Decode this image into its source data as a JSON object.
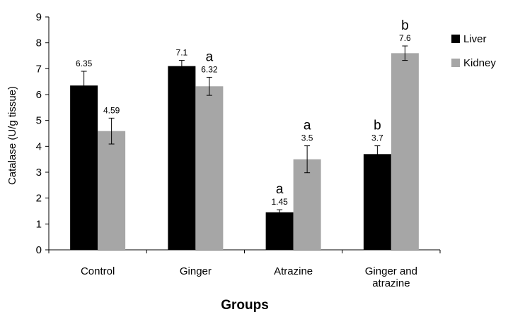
{
  "chart_data": {
    "type": "bar",
    "categories": [
      [
        "Control"
      ],
      [
        "Ginger"
      ],
      [
        "Atrazine"
      ],
      [
        "Ginger  and",
        "atrazine"
      ]
    ],
    "series": [
      {
        "name": "Liver",
        "color": "#000000",
        "values": [
          6.35,
          7.1,
          1.45,
          3.7
        ],
        "errors": [
          0.55,
          0.22,
          0.1,
          0.32
        ],
        "labels": [
          "6.35",
          "7.1",
          "1.45",
          "3.7"
        ],
        "significance": [
          "",
          "",
          "a",
          "b"
        ]
      },
      {
        "name": "Kidney",
        "color": "#a6a6a6",
        "values": [
          4.59,
          6.32,
          3.5,
          7.6
        ],
        "errors": [
          0.5,
          0.35,
          0.52,
          0.28
        ],
        "labels": [
          "4.59",
          "6.32",
          "3.5",
          "7.6"
        ],
        "significance": [
          "",
          "a",
          "a",
          "b"
        ]
      }
    ],
    "xlabel": "Groups",
    "ylabel": "Catalase (U/g tissue)",
    "ylim": [
      0,
      9
    ],
    "yticks": [
      "0",
      "1",
      "2",
      "3",
      "4",
      "5",
      "6",
      "7",
      "8",
      "9"
    ],
    "grid": false,
    "legend": "right"
  }
}
